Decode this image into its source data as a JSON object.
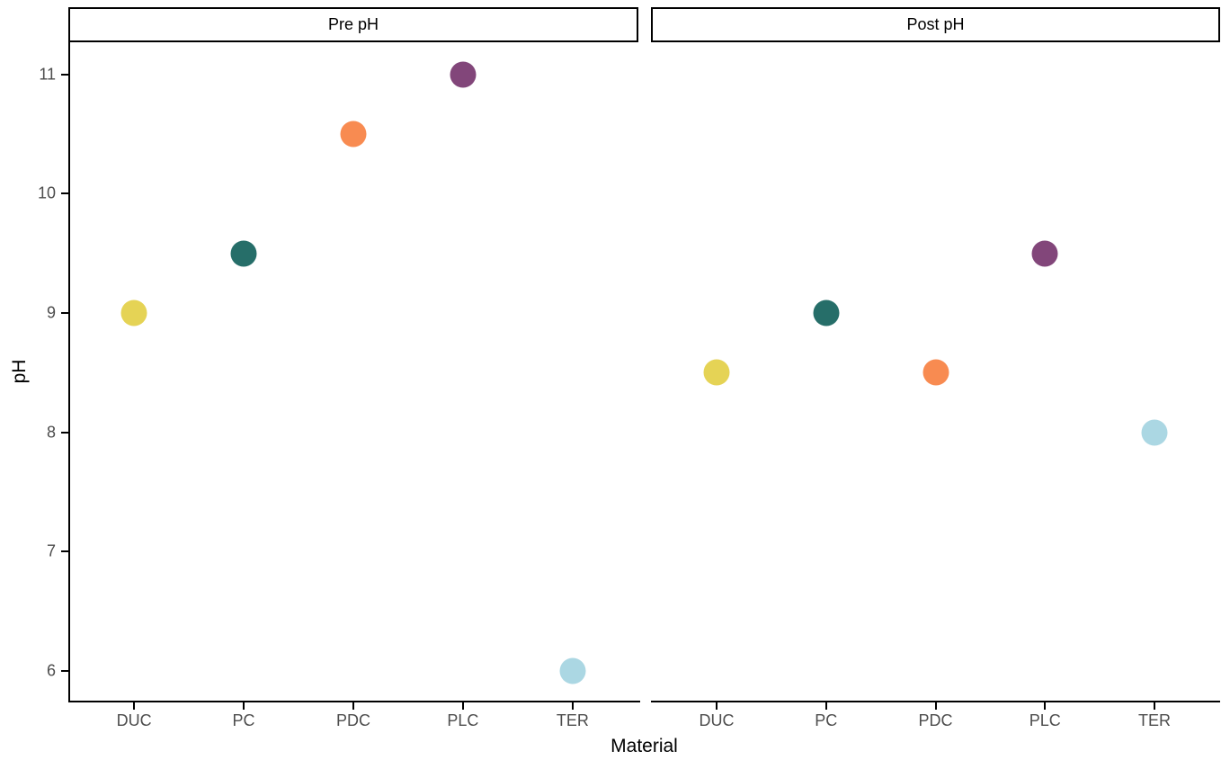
{
  "chart_data": {
    "type": "scatter",
    "title": "",
    "xlabel": "Material",
    "ylabel": "pH",
    "categories": [
      "DUC",
      "PC",
      "PDC",
      "PLC",
      "TER"
    ],
    "y_ticks": [
      "6",
      "7",
      "8",
      "9",
      "10",
      "11"
    ],
    "ylim": [
      5.75,
      11.27
    ],
    "grid": false,
    "legend": "none",
    "point_colors": {
      "DUC": "#E5D355",
      "PC": "#266E69",
      "PDC": "#F88B51",
      "PLC": "#82467A",
      "TER": "#ABD7E3"
    },
    "facets": [
      {
        "label": "Pre pH",
        "values": [
          9.0,
          9.5,
          10.5,
          11.0,
          6.0
        ]
      },
      {
        "label": "Post pH",
        "values": [
          8.5,
          9.0,
          8.5,
          9.5,
          8.0
        ]
      }
    ]
  },
  "colors": {
    "background": "#FFFFFF",
    "axis_line": "#000000",
    "tick_mark": "#000000",
    "tick_label": "#4D4D4D",
    "axis_title": "#000000",
    "strip_border": "#000000",
    "strip_background": "#FFFFFF"
  }
}
